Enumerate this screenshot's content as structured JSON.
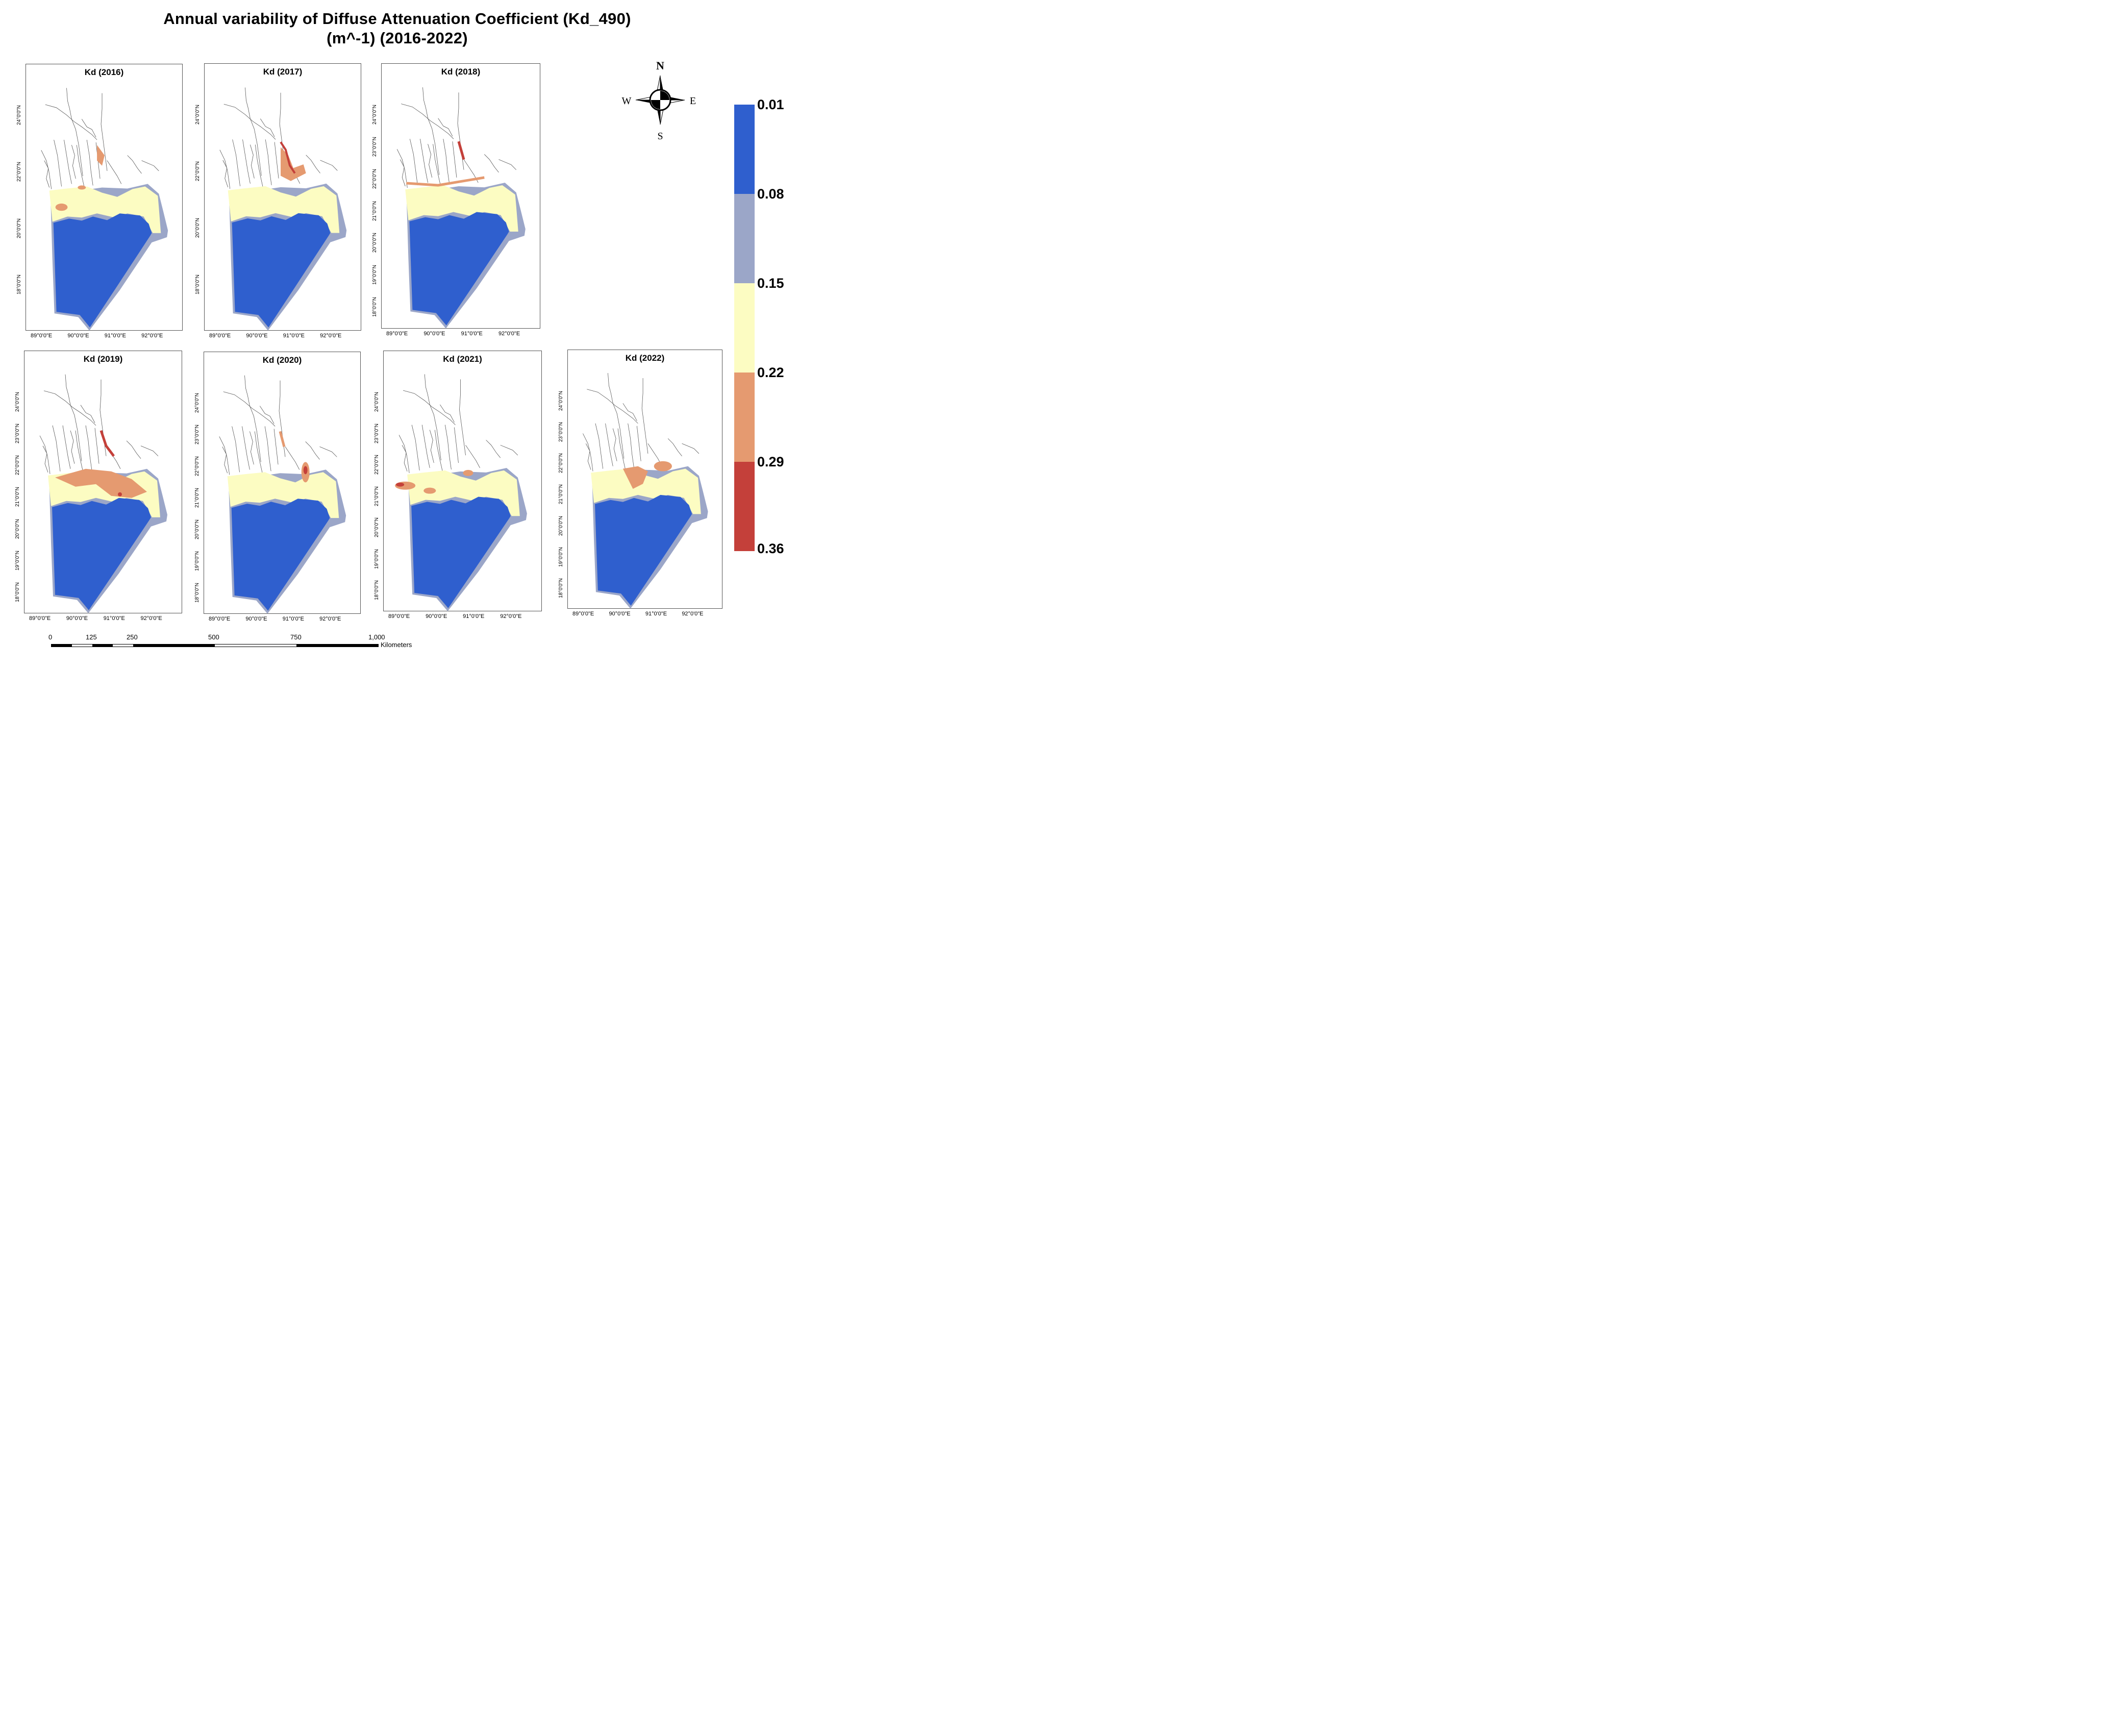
{
  "title_line1": "Annual variability of Diffuse Attenuation Coefficient (Kd_490)",
  "title_line2": "(m^-1) (2016-2022)",
  "panels": [
    {
      "title": "Kd (2016)",
      "x_labels": [
        "89°0'0\"E",
        "90°0'0\"E",
        "91°0'0\"E",
        "92°0'0\"E"
      ],
      "y_labels": [
        "24°0'0\"N",
        "22°0'0\"N",
        "20°0'0\"N",
        "18°0'0\"N"
      ]
    },
    {
      "title": "Kd (2017)",
      "x_labels": [
        "89°0'0\"E",
        "90°0'0\"E",
        "91°0'0\"E",
        "92°0'0\"E"
      ],
      "y_labels": [
        "24°0'0\"N",
        "22°0'0\"N",
        "20°0'0\"N",
        "18°0'0\"N"
      ]
    },
    {
      "title": "Kd (2018)",
      "x_labels": [
        "89°0'0\"E",
        "90°0'0\"E",
        "91°0'0\"E",
        "92°0'0\"E"
      ],
      "y_labels": [
        "24°0'0\"N",
        "23°0'0\"N",
        "22°0'0\"N",
        "21°0'0\"N",
        "20°0'0\"N",
        "19°0'0\"N",
        "18°0'0\"N"
      ]
    },
    {
      "title": "Kd (2019)",
      "x_labels": [
        "89°0'0\"E",
        "90°0'0\"E",
        "91°0'0\"E",
        "92°0'0\"E"
      ],
      "y_labels": [
        "24°0'0\"N",
        "23°0'0\"N",
        "22°0'0\"N",
        "21°0'0\"N",
        "20°0'0\"N",
        "19°0'0\"N",
        "18°0'0\"N"
      ]
    },
    {
      "title": "Kd (2020)",
      "x_labels": [
        "89°0'0\"E",
        "90°0'0\"E",
        "91°0'0\"E",
        "92°0'0\"E"
      ],
      "y_labels": [
        "24°0'0\"N",
        "23°0'0\"N",
        "22°0'0\"N",
        "21°0'0\"N",
        "20°0'0\"N",
        "19°0'0\"N",
        "18°0'0\"N"
      ]
    },
    {
      "title": "Kd (2021)",
      "x_labels": [
        "89°0'0\"E",
        "90°0'0\"E",
        "91°0'0\"E",
        "92°0'0\"E"
      ],
      "y_labels": [
        "24°0'0\"N",
        "23°0'0\"N",
        "22°0'0\"N",
        "21°0'0\"N",
        "20°0'0\"N",
        "19°0'0\"N",
        "18°0'0\"N"
      ]
    },
    {
      "title": "Kd (2022)",
      "x_labels": [
        "89°0'0\"E",
        "90°0'0\"E",
        "91°0'0\"E",
        "92°0'0\"E"
      ],
      "y_labels": [
        "24°0'0\"N",
        "23°0'0\"N",
        "22°0'0\"N",
        "21°0'0\"N",
        "20°0'0\"N",
        "19°0'0\"N",
        "18°0'0\"N"
      ]
    }
  ],
  "legend": {
    "labels": [
      "0.01",
      "0.08",
      "0.15",
      "0.22",
      "0.29",
      "0.36"
    ],
    "colors": [
      "#2f5fce",
      "#9ba6c8",
      "#fcfcc2",
      "#e59a70",
      "#c4403a"
    ]
  },
  "compass": {
    "n": "N",
    "s": "S",
    "e": "E",
    "w": "W"
  },
  "scale": {
    "labels": [
      "0",
      "125",
      "250",
      "500",
      "750",
      "1,000"
    ],
    "unit": "Kilometers"
  }
}
